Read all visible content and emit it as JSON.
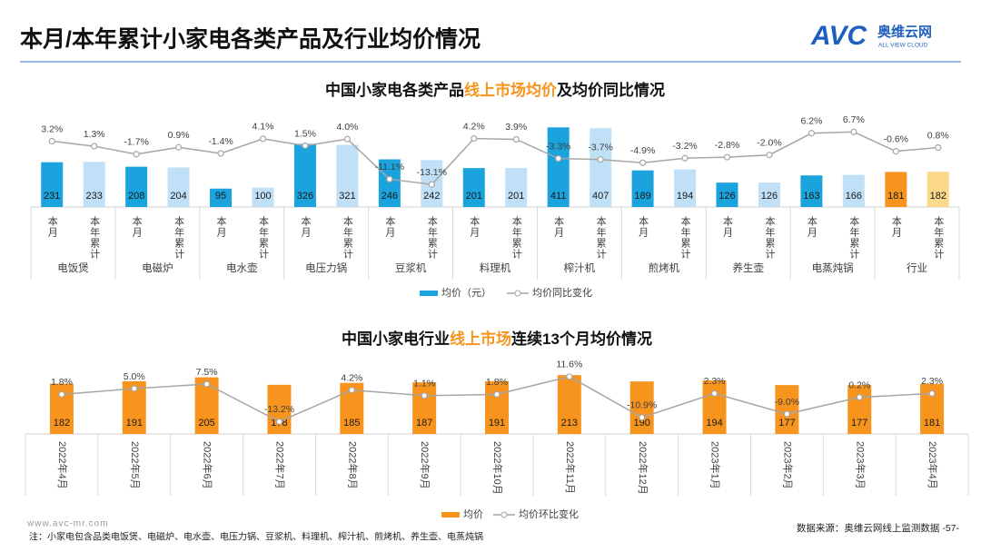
{
  "header": {
    "title": "本月/本年累计小家电各类产品及行业均价情况",
    "logo_mark": "AVC",
    "logo_name": "奥维云网",
    "logo_sub": "ALL VIEW CLOUD"
  },
  "chart_data": [
    {
      "type": "bar",
      "title_parts": [
        "中国小家电各类产品",
        "线上市场均价",
        "及均价同比情况"
      ],
      "categories": [
        "本月",
        "本年累计",
        "本月",
        "本年累计",
        "本月",
        "本年累计",
        "本月",
        "本年累计",
        "本月",
        "本年累计",
        "本月",
        "本年累计",
        "本月",
        "本年累计",
        "本月",
        "本年累计",
        "本月",
        "本年累计",
        "本月",
        "本年累计",
        "本月",
        "本年累计"
      ],
      "groups": [
        "电饭煲",
        "电磁炉",
        "电水壶",
        "电压力锅",
        "豆浆机",
        "料理机",
        "榨汁机",
        "煎烤机",
        "养生壶",
        "电蒸炖锅",
        "行业"
      ],
      "ylim": [
        0,
        450
      ],
      "y2lim": [
        -25,
        15
      ],
      "series": [
        {
          "name": "均价（元）",
          "type": "bar",
          "color": "#1aa3dc",
          "colors": [
            "#1aa3dc",
            "#bfe0f7",
            "#1aa3dc",
            "#bfe0f7",
            "#1aa3dc",
            "#bfe0f7",
            "#1aa3dc",
            "#bfe0f7",
            "#1aa3dc",
            "#bfe0f7",
            "#1aa3dc",
            "#bfe0f7",
            "#1aa3dc",
            "#bfe0f7",
            "#1aa3dc",
            "#bfe0f7",
            "#1aa3dc",
            "#bfe0f7",
            "#1aa3dc",
            "#bfe0f7",
            "#f7941d",
            "#fbd88a"
          ],
          "values": [
            231,
            233,
            208,
            204,
            95,
            100,
            326,
            321,
            246,
            242,
            201,
            201,
            411,
            407,
            189,
            194,
            126,
            126,
            163,
            166,
            181,
            182
          ]
        },
        {
          "name": "均价同比变化",
          "type": "line",
          "axis": "y2",
          "color": "#a6a6a6",
          "values": [
            3.2,
            1.3,
            -1.7,
            0.9,
            -1.4,
            4.1,
            1.5,
            4.0,
            -11.1,
            -13.1,
            4.2,
            3.9,
            -3.3,
            -3.7,
            -4.9,
            -3.2,
            -2.8,
            -2.0,
            6.2,
            6.7,
            -0.6,
            0.8
          ],
          "value_labels": [
            "3.2%",
            "1.3%",
            "-1.7%",
            "0.9%",
            "-1.4%",
            "4.1%",
            "1.5%",
            "4.0%",
            "-11.1%",
            "-13.1%",
            "4.2%",
            "3.9%",
            "-3.3%",
            "-3.7%",
            "-4.9%",
            "-3.2%",
            "-2.8%",
            "-2.0%",
            "6.2%",
            "6.7%",
            "-0.6%",
            "0.8%"
          ]
        }
      ]
    },
    {
      "type": "bar",
      "title_parts": [
        "中国小家电行业",
        "线上市场",
        "连续13个月均价情况"
      ],
      "categories": [
        "2022年4月",
        "2022年5月",
        "2022年6月",
        "2022年7月",
        "2022年8月",
        "2022年9月",
        "2022年10月",
        "2022年11月",
        "2022年12月",
        "2023年1月",
        "2023年2月",
        "2023年3月",
        "2023年4月"
      ],
      "ylim": [
        0,
        230
      ],
      "y2lim": [
        -30,
        20
      ],
      "series": [
        {
          "name": "均价",
          "type": "bar",
          "color": "#f7941d",
          "values": [
            182,
            191,
            205,
            178,
            185,
            187,
            191,
            213,
            190,
            194,
            177,
            177,
            181
          ]
        },
        {
          "name": "均价环比变化",
          "type": "line",
          "axis": "y2",
          "color": "#a6a6a6",
          "values": [
            1.8,
            5.0,
            7.5,
            -13.2,
            4.2,
            1.1,
            1.8,
            11.6,
            -10.9,
            2.3,
            -9.0,
            0.2,
            2.3
          ],
          "value_labels": [
            "1.8%",
            "5.0%",
            "7.5%",
            "-13.2%",
            "4.2%",
            "1.1%",
            "1.8%",
            "11.6%",
            "-10.9%",
            "2.3%",
            "-9.0%",
            "0.2%",
            "2.3%"
          ]
        }
      ]
    }
  ],
  "footer": {
    "site": "www.avc-mr.com",
    "note": "注：小家电包含品类电饭煲、电磁炉、电水壶、电压力锅、豆浆机、料理机、榨汁机、煎烤机、养生壶、电蒸炖锅",
    "source": "数据来源：奥维云网线上监测数据 -57-"
  }
}
